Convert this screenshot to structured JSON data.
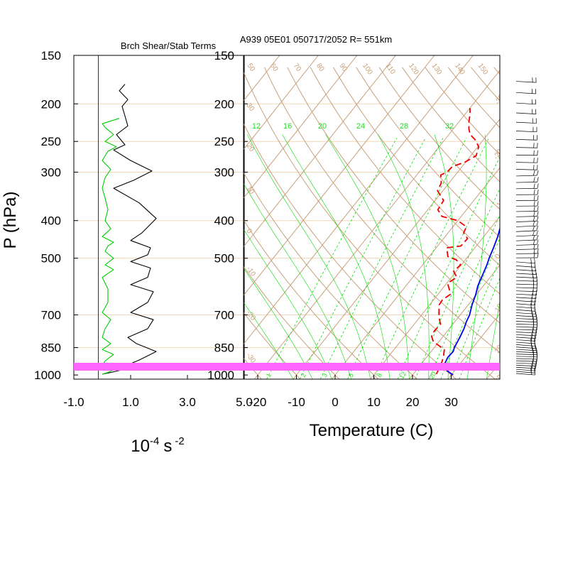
{
  "header": {
    "left_title": "Brch Shear/Stab Terms",
    "right_title": "A939 05E01 050717/2052 R= 551km"
  },
  "colors": {
    "isotherm": "#c8a07a",
    "isobar": "#f0d8b8",
    "mixing_ratio": "#00dd00",
    "temperature": "#0000ee",
    "dewpoint": "#ee0000",
    "stability": "#000000",
    "shear": "#00cc00",
    "highlight_band": "#ff66ff"
  },
  "chart_data": [
    {
      "type": "line",
      "title": "Brch Shear/Stab Terms",
      "ylabel": "P (hPa)",
      "xlabel_base": "10",
      "xlabel_exp": "-4",
      "xlabel_unit": "s",
      "xlabel_unit_exp": "-2",
      "xlim": [
        -1.0,
        5.0
      ],
      "xticks": [
        "-1.0",
        "1.0",
        "3.0",
        "5.0"
      ],
      "xtick_values": [
        -1.0,
        1.0,
        3.0,
        5.0
      ],
      "yticks": [
        "150",
        "200",
        "250",
        "300",
        "400",
        "500",
        "700",
        "850",
        "1000"
      ],
      "ytick_values": [
        150,
        200,
        250,
        300,
        400,
        500,
        700,
        850,
        1000
      ],
      "pressure_grid": [
        200,
        250,
        300,
        400,
        500,
        700,
        850
      ],
      "series": [
        {
          "key": "stability",
          "points": [
            [
              0.0,
              995
            ],
            [
              0.3,
              985
            ],
            [
              0.7,
              970
            ],
            [
              1.1,
              955
            ],
            [
              1.0,
              935
            ],
            [
              1.3,
              915
            ],
            [
              1.9,
              870
            ],
            [
              1.2,
              830
            ],
            [
              0.9,
              800
            ],
            [
              1.6,
              760
            ],
            [
              1.8,
              720
            ],
            [
              1.0,
              690
            ],
            [
              1.6,
              650
            ],
            [
              1.8,
              610
            ],
            [
              1.0,
              585
            ],
            [
              1.6,
              560
            ],
            [
              1.7,
              530
            ],
            [
              1.0,
              510
            ],
            [
              1.6,
              490
            ],
            [
              1.7,
              470
            ],
            [
              1.0,
              450
            ],
            [
              1.4,
              430
            ],
            [
              1.9,
              395
            ],
            [
              1.3,
              360
            ],
            [
              0.4,
              330
            ],
            [
              1.1,
              315
            ],
            [
              1.75,
              298
            ],
            [
              1.0,
              280
            ],
            [
              0.4,
              263
            ],
            [
              0.8,
              255
            ],
            [
              0.5,
              240
            ],
            [
              0.9,
              228
            ],
            [
              0.8,
              215
            ],
            [
              0.7,
              203
            ],
            [
              0.9,
              195
            ],
            [
              0.6,
              185
            ],
            [
              0.8,
              178
            ]
          ]
        },
        {
          "key": "shear",
          "points": [
            [
              0.0,
              995
            ],
            [
              0.2,
              985
            ],
            [
              0.4,
              970
            ],
            [
              0.0,
              945
            ],
            [
              0.1,
              920
            ],
            [
              0.4,
              885
            ],
            [
              0.0,
              860
            ],
            [
              0.3,
              830
            ],
            [
              0.0,
              800
            ],
            [
              0.1,
              760
            ],
            [
              0.3,
              720
            ],
            [
              0.0,
              690
            ],
            [
              0.2,
              650
            ],
            [
              0.2,
              600
            ],
            [
              0.0,
              560
            ],
            [
              0.4,
              535
            ],
            [
              0.1,
              520
            ],
            [
              0.4,
              500
            ],
            [
              0.1,
              480
            ],
            [
              0.2,
              465
            ],
            [
              0.4,
              455
            ],
            [
              0.0,
              440
            ],
            [
              0.3,
              420
            ],
            [
              0.1,
              400
            ],
            [
              0.2,
              375
            ],
            [
              0.1,
              350
            ],
            [
              0.0,
              330
            ],
            [
              0.1,
              310
            ],
            [
              0.3,
              295
            ],
            [
              0.0,
              280
            ],
            [
              0.2,
              265
            ],
            [
              0.5,
              258
            ],
            [
              0.1,
              250
            ],
            [
              0.4,
              240
            ],
            [
              0.1,
              230
            ],
            [
              0.0,
              225
            ],
            [
              0.6,
              218
            ]
          ]
        }
      ]
    },
    {
      "type": "line",
      "title": "A939 05E01 050717/2052 R= 551km",
      "xlabel": "Temperature (C)",
      "xlim": [
        -25,
        40
      ],
      "xticks": [
        "-20",
        "-10",
        "0",
        "10",
        "20",
        "30"
      ],
      "xtick_values": [
        -20,
        -10,
        0,
        10,
        20,
        30
      ],
      "yticks": [
        "150",
        "200",
        "250",
        "300",
        "400",
        "500",
        "700",
        "850",
        "1000"
      ],
      "ytick_values": [
        150,
        200,
        250,
        300,
        400,
        500,
        700,
        850,
        1000
      ],
      "pressure_grid": [
        200,
        250,
        300,
        400,
        500,
        700,
        850
      ],
      "isotherm_labels": [
        "-30",
        "-20",
        "-10",
        "0",
        "10",
        "20",
        "30"
      ],
      "theta_labels_top": [
        "50",
        "60",
        "70",
        "80",
        "90",
        "100",
        "110",
        "120",
        "130",
        "140",
        "150"
      ],
      "theta_labels_left": [
        "30",
        "20",
        "10",
        "0",
        "-10",
        "-20",
        "-30"
      ],
      "mixing_ratio_labels_top": [
        "12",
        "16",
        "20",
        "24",
        "28",
        "32"
      ],
      "mixing_ratio_labels_bottom": [
        "1",
        "2",
        "3",
        "5",
        "8",
        "12",
        "20"
      ],
      "series": [
        {
          "key": "temperature",
          "points": [
            [
              30.5,
              1000
            ],
            [
              28.5,
              980
            ],
            [
              26.8,
              960
            ],
            [
              26.0,
              935
            ],
            [
              25.5,
              900
            ],
            [
              25.7,
              870
            ],
            [
              25.2,
              850
            ],
            [
              24.5,
              800
            ],
            [
              23.8,
              760
            ],
            [
              23.0,
              730
            ],
            [
              22.4,
              700
            ],
            [
              21.0,
              660
            ],
            [
              19.8,
              620
            ],
            [
              18.6,
              590
            ],
            [
              17.5,
              550
            ],
            [
              16.6,
              520
            ],
            [
              15.8,
              500
            ],
            [
              14.8,
              470
            ],
            [
              13.6,
              440
            ],
            [
              12.0,
              410
            ],
            [
              10.4,
              380
            ],
            [
              8.5,
              355
            ],
            [
              6.4,
              330
            ],
            [
              4.9,
              315
            ],
            [
              3.8,
              300
            ],
            [
              2.2,
              280
            ],
            [
              0.2,
              260
            ],
            [
              -2.3,
              240
            ],
            [
              -4.9,
              220
            ],
            [
              -6.9,
              205
            ],
            [
              -9.0,
              190
            ],
            [
              -10.4,
              180
            ]
          ]
        },
        {
          "key": "dewpoint",
          "points": [
            [
              26.0,
              995
            ],
            [
              25.5,
              960
            ],
            [
              24.8,
              920
            ],
            [
              24.0,
              890
            ],
            [
              23.0,
              860
            ],
            [
              20.8,
              840
            ],
            [
              18.5,
              820
            ],
            [
              17.0,
              795
            ],
            [
              16.6,
              770
            ],
            [
              16.8,
              740
            ],
            [
              15.0,
              710
            ],
            [
              14.0,
              690
            ],
            [
              12.5,
              660
            ],
            [
              12.3,
              640
            ],
            [
              13.2,
              620
            ],
            [
              11.8,
              600
            ],
            [
              10.2,
              580
            ],
            [
              11.4,
              560
            ],
            [
              9.3,
              540
            ],
            [
              9.8,
              520
            ],
            [
              7.7,
              505
            ],
            [
              4.8,
              495
            ],
            [
              2.7,
              470
            ],
            [
              6.0,
              465
            ],
            [
              6.2,
              445
            ],
            [
              4.0,
              430
            ],
            [
              3.5,
              415
            ],
            [
              0.0,
              400
            ],
            [
              -5.0,
              390
            ],
            [
              -7.4,
              375
            ],
            [
              -7.8,
              355
            ],
            [
              -11.4,
              335
            ],
            [
              -12.0,
              320
            ],
            [
              -13.8,
              305
            ],
            [
              -12.8,
              300
            ],
            [
              -12.5,
              290
            ],
            [
              -10.2,
              283
            ],
            [
              -8.6,
              272
            ],
            [
              -9.8,
              258
            ],
            [
              -12.0,
              248
            ],
            [
              -14.5,
              240
            ],
            [
              -16.0,
              232
            ],
            [
              -17.5,
              222
            ],
            [
              -18.8,
              212
            ],
            [
              -20.0,
              205
            ]
          ]
        }
      ]
    }
  ]
}
